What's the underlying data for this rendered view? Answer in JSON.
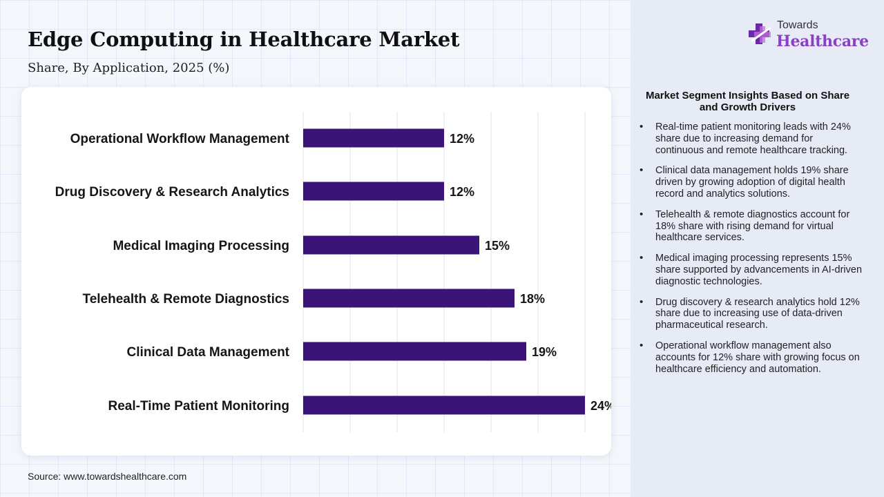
{
  "header": {
    "title": "Edge Computing in Healthcare Market",
    "subtitle": "Share, By Application, 2025 (%)"
  },
  "logo": {
    "top_text": "Towards",
    "main_text": "Healthcare"
  },
  "chart_data": {
    "type": "bar",
    "orientation": "horizontal",
    "categories": [
      "Operational Workflow Management",
      "Drug Discovery & Research Analytics",
      "Medical Imaging Processing",
      "Telehealth & Remote Diagnostics",
      "Clinical Data Management",
      "Real-Time Patient Monitoring"
    ],
    "values": [
      12,
      12,
      15,
      18,
      19,
      24
    ],
    "value_labels": [
      "12%",
      "12%",
      "15%",
      "18%",
      "19%",
      "24%"
    ],
    "xlim": [
      0,
      30
    ],
    "grid": true,
    "bar_color": "#3c1378"
  },
  "insights": {
    "title": "Market Segment Insights Based on Share and Growth Drivers",
    "items": [
      "Real-time patient monitoring leads with 24% share due to increasing demand for continuous and remote healthcare tracking.",
      "Clinical data management holds 19% share driven by growing adoption of digital health record and analytics solutions.",
      "Telehealth & remote diagnostics account for 18% share with rising demand for virtual healthcare services.",
      "Medical imaging processing represents 15% share supported by advancements in AI-driven diagnostic technologies.",
      "Drug discovery & research analytics hold 12% share due to increasing use of data-driven pharmaceutical research.",
      "Operational workflow management also accounts for 12% share with growing focus on healthcare efficiency and automation."
    ]
  },
  "source": "Source: www.towardshealthcare.com",
  "colors": {
    "bar": "#3c1378",
    "logo_accent": "#8a3fc7",
    "panel": "#e6ebf6"
  }
}
